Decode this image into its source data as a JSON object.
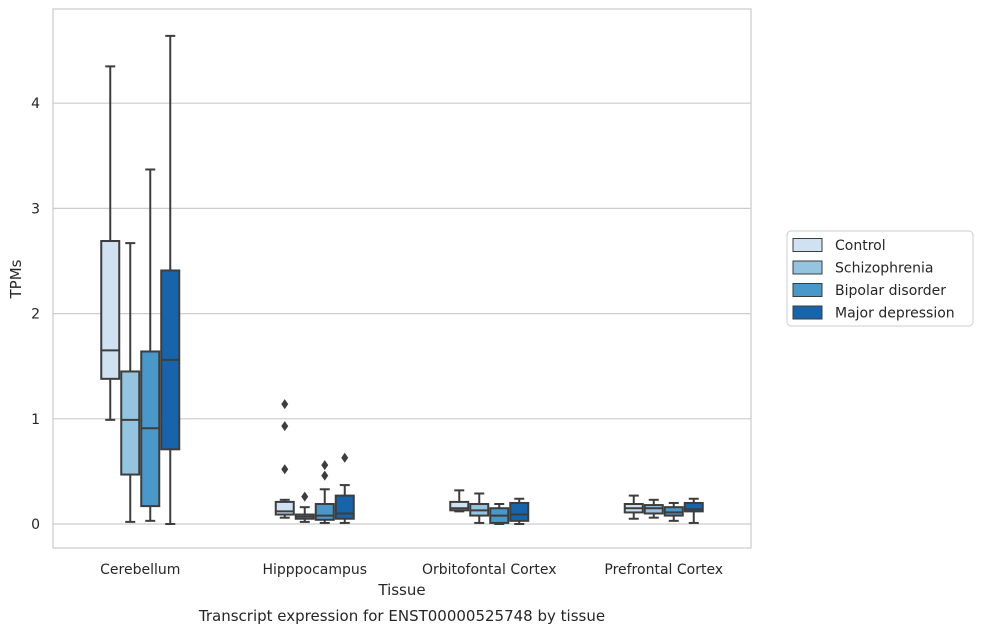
{
  "chart_data": {
    "type": "box",
    "xlabel": "Tissue",
    "ylabel": "TPMs",
    "caption": "Transcript expression for ENST00000525748 by tissue",
    "categories": [
      "Cerebellum",
      "Hipppocampus",
      "Orbitofontal Cortex",
      "Prefrontal Cortex"
    ],
    "ylim": [
      -0.22,
      4.9
    ],
    "yticks": [
      0,
      1,
      2,
      3,
      4
    ],
    "grid": "horizontal",
    "legend_position": "right",
    "series": [
      {
        "name": "Control",
        "color": "#d0e1f2",
        "boxes": [
          {
            "min": 0.99,
            "q1": 1.38,
            "median": 1.65,
            "q3": 2.69,
            "max": 4.35,
            "outliers": []
          },
          {
            "min": 0.06,
            "q1": 0.09,
            "median": 0.12,
            "q3": 0.21,
            "max": 0.23,
            "outliers": [
              0.52,
              0.93,
              1.14
            ]
          },
          {
            "min": 0.12,
            "q1": 0.13,
            "median": 0.15,
            "q3": 0.21,
            "max": 0.32,
            "outliers": []
          },
          {
            "min": 0.05,
            "q1": 0.11,
            "median": 0.15,
            "q3": 0.19,
            "max": 0.27,
            "outliers": []
          }
        ]
      },
      {
        "name": "Schizophrenia",
        "color": "#94c4df",
        "boxes": [
          {
            "min": 0.02,
            "q1": 0.47,
            "median": 0.99,
            "q3": 1.45,
            "max": 2.67,
            "outliers": []
          },
          {
            "min": 0.02,
            "q1": 0.05,
            "median": 0.07,
            "q3": 0.09,
            "max": 0.16,
            "outliers": [
              0.26
            ]
          },
          {
            "min": 0.01,
            "q1": 0.08,
            "median": 0.13,
            "q3": 0.19,
            "max": 0.29,
            "outliers": []
          },
          {
            "min": 0.06,
            "q1": 0.1,
            "median": 0.15,
            "q3": 0.18,
            "max": 0.23,
            "outliers": []
          }
        ]
      },
      {
        "name": "Bipolar disorder",
        "color": "#4a98c9",
        "boxes": [
          {
            "min": 0.03,
            "q1": 0.17,
            "median": 0.91,
            "q3": 1.64,
            "max": 3.37,
            "outliers": []
          },
          {
            "min": 0.01,
            "q1": 0.04,
            "median": 0.08,
            "q3": 0.19,
            "max": 0.33,
            "outliers": [
              0.46,
              0.56
            ]
          },
          {
            "min": 0.0,
            "q1": 0.01,
            "median": 0.08,
            "q3": 0.15,
            "max": 0.19,
            "outliers": []
          },
          {
            "min": 0.03,
            "q1": 0.08,
            "median": 0.11,
            "q3": 0.16,
            "max": 0.2,
            "outliers": []
          }
        ]
      },
      {
        "name": "Major depression",
        "color": "#1764ab",
        "boxes": [
          {
            "min": 0.0,
            "q1": 0.71,
            "median": 1.56,
            "q3": 2.41,
            "max": 4.64,
            "outliers": []
          },
          {
            "min": 0.01,
            "q1": 0.05,
            "median": 0.1,
            "q3": 0.27,
            "max": 0.37,
            "outliers": [
              0.63
            ]
          },
          {
            "min": 0.0,
            "q1": 0.03,
            "median": 0.09,
            "q3": 0.2,
            "max": 0.24,
            "outliers": []
          },
          {
            "min": 0.01,
            "q1": 0.12,
            "median": 0.14,
            "q3": 0.2,
            "max": 0.24,
            "outliers": []
          }
        ]
      }
    ]
  }
}
